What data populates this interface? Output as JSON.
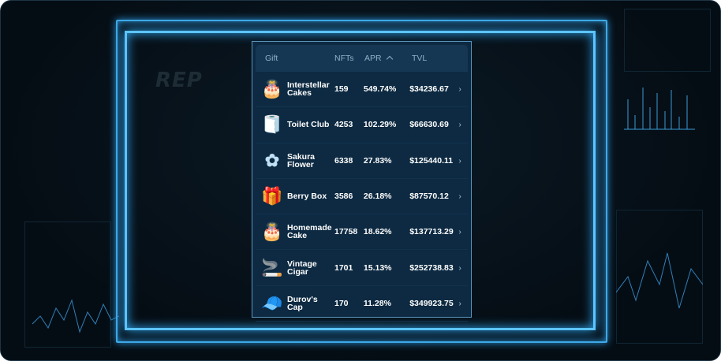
{
  "background": {
    "logo_text": "REP"
  },
  "table": {
    "headers": {
      "gift": "Gift",
      "nfts": "NFTs",
      "apr": "APR",
      "tvl": "TVL",
      "sort_icon": "chevron-up-icon"
    },
    "rows": [
      {
        "name": "Interstellar Cakes",
        "icon": "cake-icon",
        "nfts": "159",
        "apr": "549.74%",
        "tvl": "$34236.67"
      },
      {
        "name": "Toilet Club",
        "icon": "toilet-paper-icon",
        "nfts": "4253",
        "apr": "102.29%",
        "tvl": "$66630.69"
      },
      {
        "name": "Sakura Flower",
        "icon": "flower-icon",
        "nfts": "6338",
        "apr": "27.83%",
        "tvl": "$125440.11"
      },
      {
        "name": "Berry Box",
        "icon": "berry-box-icon",
        "nfts": "3586",
        "apr": "26.18%",
        "tvl": "$87570.12"
      },
      {
        "name": "Homemade Cake",
        "icon": "cake-icon",
        "nfts": "17758",
        "apr": "18.62%",
        "tvl": "$137713.29"
      },
      {
        "name": "Vintage Cigar",
        "icon": "cigar-icon",
        "nfts": "1701",
        "apr": "15.13%",
        "tvl": "$252738.83"
      },
      {
        "name": "Durov's Cap",
        "icon": "cap-icon",
        "nfts": "170",
        "apr": "11.28%",
        "tvl": "$349923.75"
      }
    ]
  },
  "colors": {
    "frame_glow": "#3fa9e6",
    "table_bg": "#0d2a42",
    "header_bg": "#163753"
  }
}
